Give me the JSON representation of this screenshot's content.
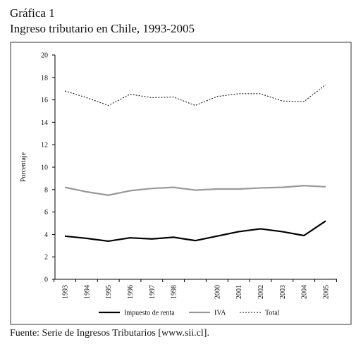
{
  "chart_data": {
    "type": "line",
    "title": "Gráfica 1",
    "subtitle": "Ingreso tributario en Chile, 1993-2005",
    "y_label": "Porcentaje",
    "source": "Fuente: Serie de Ingresos Tributarios [www.sii.cl].",
    "categories": [
      "1993",
      "1994",
      "1995",
      "1996",
      "1997",
      "1998",
      null,
      "2000",
      "2001",
      "2002",
      "2003",
      "2004",
      "2005"
    ],
    "series": [
      {
        "name": "Impuesto de renta",
        "color": "#000000",
        "style": "solid",
        "values": [
          3.85,
          3.65,
          3.4,
          3.7,
          3.6,
          3.75,
          3.45,
          3.85,
          4.25,
          4.5,
          4.25,
          3.9,
          5.2
        ]
      },
      {
        "name": "IVA",
        "color": "#999999",
        "style": "solid",
        "values": [
          8.2,
          7.8,
          7.5,
          7.9,
          8.1,
          8.2,
          7.95,
          8.05,
          8.05,
          8.15,
          8.2,
          8.35,
          8.25
        ]
      },
      {
        "name": "Total",
        "color": "#000000",
        "style": "dashed",
        "values": [
          16.8,
          16.2,
          15.5,
          16.5,
          16.2,
          16.25,
          15.5,
          16.3,
          16.55,
          16.55,
          15.9,
          15.85,
          17.35
        ]
      }
    ],
    "ylim": [
      0,
      20
    ],
    "yticks": [
      0,
      2,
      4,
      6,
      8,
      10,
      12,
      14,
      16,
      18,
      20
    ],
    "legend": "bottom"
  }
}
